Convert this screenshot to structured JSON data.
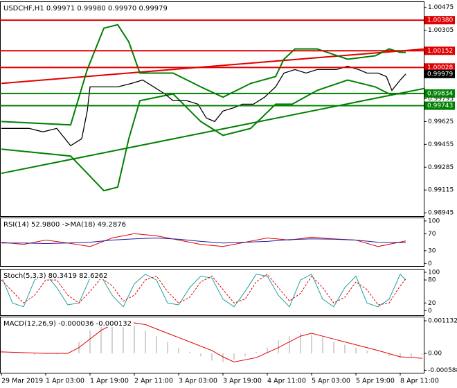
{
  "chart_data": [
    {
      "type": "line",
      "title": "USDCHF,H1  0.99971 0.99980 0.99970 0.99979",
      "ylim": [
        0.9892,
        1.0052
      ],
      "yticks": [
        1.00475,
        1.00305,
        1.00135,
        0.99965,
        0.99795,
        0.99625,
        0.99455,
        0.99285,
        0.99115,
        0.98945
      ],
      "levels": [
        {
          "value": 1.0038,
          "label": "1.00380",
          "color": "#e00000"
        },
        {
          "value": 1.00152,
          "label": "1.00152",
          "color": "#e00000"
        },
        {
          "value": 1.00028,
          "label": "1.00028",
          "color": "#e00000"
        },
        {
          "value": 0.99979,
          "label": "0.99979",
          "color": "#000000"
        },
        {
          "value": 0.99834,
          "label": "0.99834",
          "color": "#008000"
        },
        {
          "value": 0.99743,
          "label": "0.99743",
          "color": "#008000"
        }
      ],
      "series": [
        {
          "color": "#008000",
          "width": 2,
          "x": [
            0,
            153
          ],
          "values": [
            0.99239,
            0.99873
          ]
        },
        {
          "color": "#e00000",
          "width": 2,
          "x": [
            0,
            153
          ],
          "values": [
            0.99909,
            1.00166
          ]
        },
        {
          "color": "#008000",
          "width": 2,
          "x": [
            0,
            25,
            31,
            37,
            42,
            46,
            50,
            62,
            72,
            80,
            90,
            99,
            102,
            106,
            114,
            125,
            135,
            140,
            144,
            146
          ],
          "values": [
            0.99625,
            0.996,
            1.00012,
            1.0032,
            1.00346,
            1.00218,
            0.99986,
            0.99986,
            0.99883,
            0.99806,
            0.99909,
            0.9996,
            1.00089,
            1.00166,
            1.00166,
            1.00089,
            1.00115,
            1.00166,
            1.0014,
            1.0014
          ]
        },
        {
          "color": "#008000",
          "width": 2,
          "x": [
            0,
            25,
            31,
            37,
            42,
            46,
            50,
            62,
            72,
            80,
            90,
            99,
            105,
            114,
            125,
            135,
            140,
            146
          ],
          "values": [
            0.99419,
            0.99368,
            0.99239,
            0.9911,
            0.99136,
            0.99497,
            0.9978,
            0.99831,
            0.99625,
            0.99522,
            0.99574,
            0.99754,
            0.99754,
            0.99857,
            0.99934,
            0.99883,
            0.99831,
            0.99831
          ]
        },
        {
          "color": "#000000",
          "width": 1.3,
          "x": [
            0,
            5,
            10,
            15,
            20,
            25,
            29,
            31,
            32,
            37,
            42,
            47,
            51,
            55,
            59,
            62,
            67,
            71,
            74,
            77,
            80,
            84,
            87,
            91,
            95,
            99,
            102,
            106,
            110,
            114,
            117,
            121,
            125,
            129,
            132,
            136,
            139,
            141,
            144,
            146
          ],
          "values": [
            0.99574,
            0.99574,
            0.99574,
            0.99548,
            0.99574,
            0.99445,
            0.99497,
            0.99703,
            0.99883,
            0.99883,
            0.99883,
            0.99909,
            0.99934,
            0.99883,
            0.99831,
            0.9978,
            0.9978,
            0.99754,
            0.99651,
            0.99625,
            0.99703,
            0.99728,
            0.99754,
            0.99754,
            0.99806,
            0.99883,
            0.99986,
            1.00012,
            0.99986,
            1.00012,
            1.00012,
            1.00012,
            1.00037,
            1.00012,
            0.99986,
            0.99986,
            0.9996,
            0.99857,
            0.99934,
            0.99979
          ]
        }
      ]
    },
    {
      "type": "line",
      "title": "RSI(14) 52.9800 ->MA(18) 49.2876",
      "ylim": [
        -6,
        108
      ],
      "yticks": [
        100,
        70,
        30,
        0
      ],
      "series": [
        {
          "color": "#e00000",
          "width": 1,
          "x": [
            0,
            8,
            16,
            24,
            32,
            40,
            48,
            56,
            64,
            72,
            80,
            88,
            96,
            104,
            112,
            120,
            128,
            136,
            146
          ],
          "values": [
            50,
            45,
            55,
            48,
            40,
            60,
            70,
            65,
            55,
            45,
            40,
            50,
            60,
            55,
            62,
            58,
            55,
            40,
            53
          ]
        },
        {
          "color": "#1a1aa0",
          "width": 1,
          "x": [
            0,
            8,
            16,
            24,
            32,
            40,
            48,
            56,
            64,
            72,
            80,
            88,
            96,
            104,
            112,
            120,
            128,
            136,
            146
          ],
          "values": [
            48,
            48,
            47,
            48,
            50,
            55,
            58,
            60,
            57,
            52,
            48,
            50,
            52,
            56,
            58,
            57,
            55,
            50,
            49
          ]
        }
      ]
    },
    {
      "type": "line",
      "title": "Stoch(5,3,3) 80.3419 82.6262",
      "ylim": [
        -12,
        109
      ],
      "yticks": [
        100,
        80,
        20,
        0
      ],
      "series": [
        {
          "color": "#20a0a0",
          "width": 1,
          "x": [
            0,
            4,
            8,
            12,
            16,
            20,
            24,
            28,
            32,
            36,
            40,
            44,
            48,
            52,
            56,
            60,
            64,
            68,
            72,
            76,
            80,
            84,
            88,
            92,
            96,
            100,
            104,
            108,
            112,
            116,
            120,
            124,
            128,
            132,
            136,
            140,
            144,
            146
          ],
          "values": [
            90,
            20,
            10,
            80,
            95,
            60,
            15,
            20,
            85,
            90,
            40,
            10,
            70,
            95,
            80,
            20,
            15,
            60,
            90,
            85,
            30,
            10,
            50,
            95,
            90,
            40,
            10,
            80,
            95,
            30,
            10,
            60,
            90,
            20,
            10,
            30,
            95,
            80
          ]
        },
        {
          "color": "#e00000",
          "width": 1,
          "dash": true,
          "x": [
            0,
            4,
            8,
            12,
            16,
            20,
            24,
            28,
            32,
            36,
            40,
            44,
            48,
            52,
            56,
            60,
            64,
            68,
            72,
            76,
            80,
            84,
            88,
            92,
            96,
            100,
            104,
            108,
            112,
            116,
            120,
            124,
            128,
            132,
            136,
            140,
            144,
            146
          ],
          "values": [
            80,
            50,
            20,
            40,
            80,
            80,
            40,
            20,
            50,
            85,
            65,
            25,
            40,
            80,
            90,
            50,
            20,
            35,
            75,
            90,
            55,
            20,
            30,
            75,
            95,
            60,
            25,
            45,
            90,
            60,
            20,
            35,
            75,
            55,
            15,
            20,
            65,
            83
          ]
        }
      ]
    },
    {
      "type": "bar",
      "title": "MACD(12,26,9) -0.000036 -0.000132",
      "ylim": [
        -0.000674,
        0.001277
      ],
      "yticks": [
        0.001132,
        {
          "value": 0,
          "label": "0.00"
        },
        -0.000588
      ],
      "color": "#b4b4b4",
      "x": [
        0,
        4,
        8,
        12,
        16,
        20,
        24,
        28,
        32,
        36,
        40,
        44,
        48,
        52,
        56,
        60,
        64,
        68,
        72,
        76,
        80,
        84,
        88,
        92,
        96,
        100,
        104,
        108,
        112,
        116,
        120,
        124,
        128,
        132,
        136,
        140,
        144,
        148,
        152
      ],
      "values": [
        0.0001,
        5e-05,
        0,
        -5e-05,
        2e-05,
        -3e-05,
        2e-05,
        0.0004,
        0.0008,
        0.00105,
        0.00115,
        0.00112,
        0.00095,
        0.0008,
        0.0006,
        0.0004,
        0.0002,
        5e-05,
        -0.0001,
        -0.00025,
        -0.0003,
        -0.00022,
        -0.0001,
        5e-05,
        0.0002,
        0.00045,
        0.0006,
        0.0007,
        0.00065,
        0.00055,
        0.0004,
        0.0003,
        0.0002,
        0.0001,
        0,
        -0.0001,
        -0.00015,
        -0.00012,
        -4e-05
      ],
      "series": [
        {
          "color": "#e00000",
          "width": 1,
          "x": [
            0,
            16,
            24,
            28,
            32,
            36,
            40,
            44,
            52,
            60,
            68,
            76,
            80,
            84,
            92,
            100,
            108,
            112,
            120,
            128,
            136,
            144,
            152
          ],
          "values": [
            5e-05,
            0,
            0,
            0.0002,
            0.0005,
            0.0008,
            0.001,
            0.00112,
            0.001,
            0.0007,
            0.0004,
            0.0001,
            -0.00012,
            -0.0003,
            -0.00015,
            0.0002,
            0.0006,
            0.0007,
            0.0005,
            0.0003,
            0.0001,
            -0.00012,
            -0.00017
          ]
        }
      ],
      "xlim": [
        0,
        153
      ],
      "xticks": [
        {
          "value": 0,
          "label": "29 Mar 2019"
        },
        {
          "value": 16,
          "label": "1 Apr 03:00"
        },
        {
          "value": 32,
          "label": "1 Apr 19:00"
        },
        {
          "value": 48,
          "label": "2 Apr 11:00"
        },
        {
          "value": 64,
          "label": "3 Apr 03:00"
        },
        {
          "value": 80,
          "label": "3 Apr 19:00"
        },
        {
          "value": 96,
          "label": "4 Apr 11:00"
        },
        {
          "value": 112,
          "label": "5 Apr 03:00"
        },
        {
          "value": 128,
          "label": "5 Apr 19:00"
        },
        {
          "value": 144,
          "label": "8 Apr 11:00"
        }
      ]
    }
  ]
}
